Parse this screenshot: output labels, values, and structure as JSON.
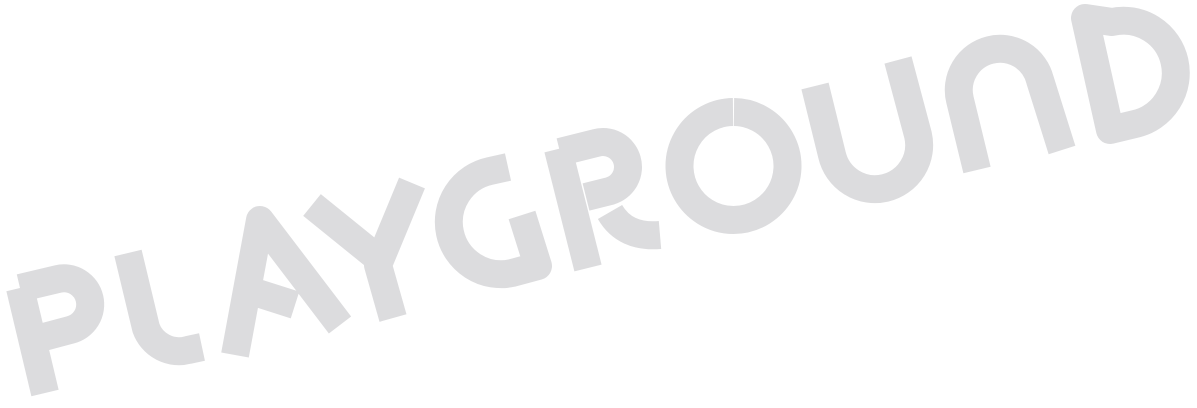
{
  "logo": {
    "text": "PLAYGROUND",
    "color": "#dcdcde",
    "background": "#ffffff",
    "letters": [
      "P",
      "L",
      "A",
      "Y",
      "G",
      "R",
      "O",
      "U",
      "N",
      "D"
    ]
  }
}
